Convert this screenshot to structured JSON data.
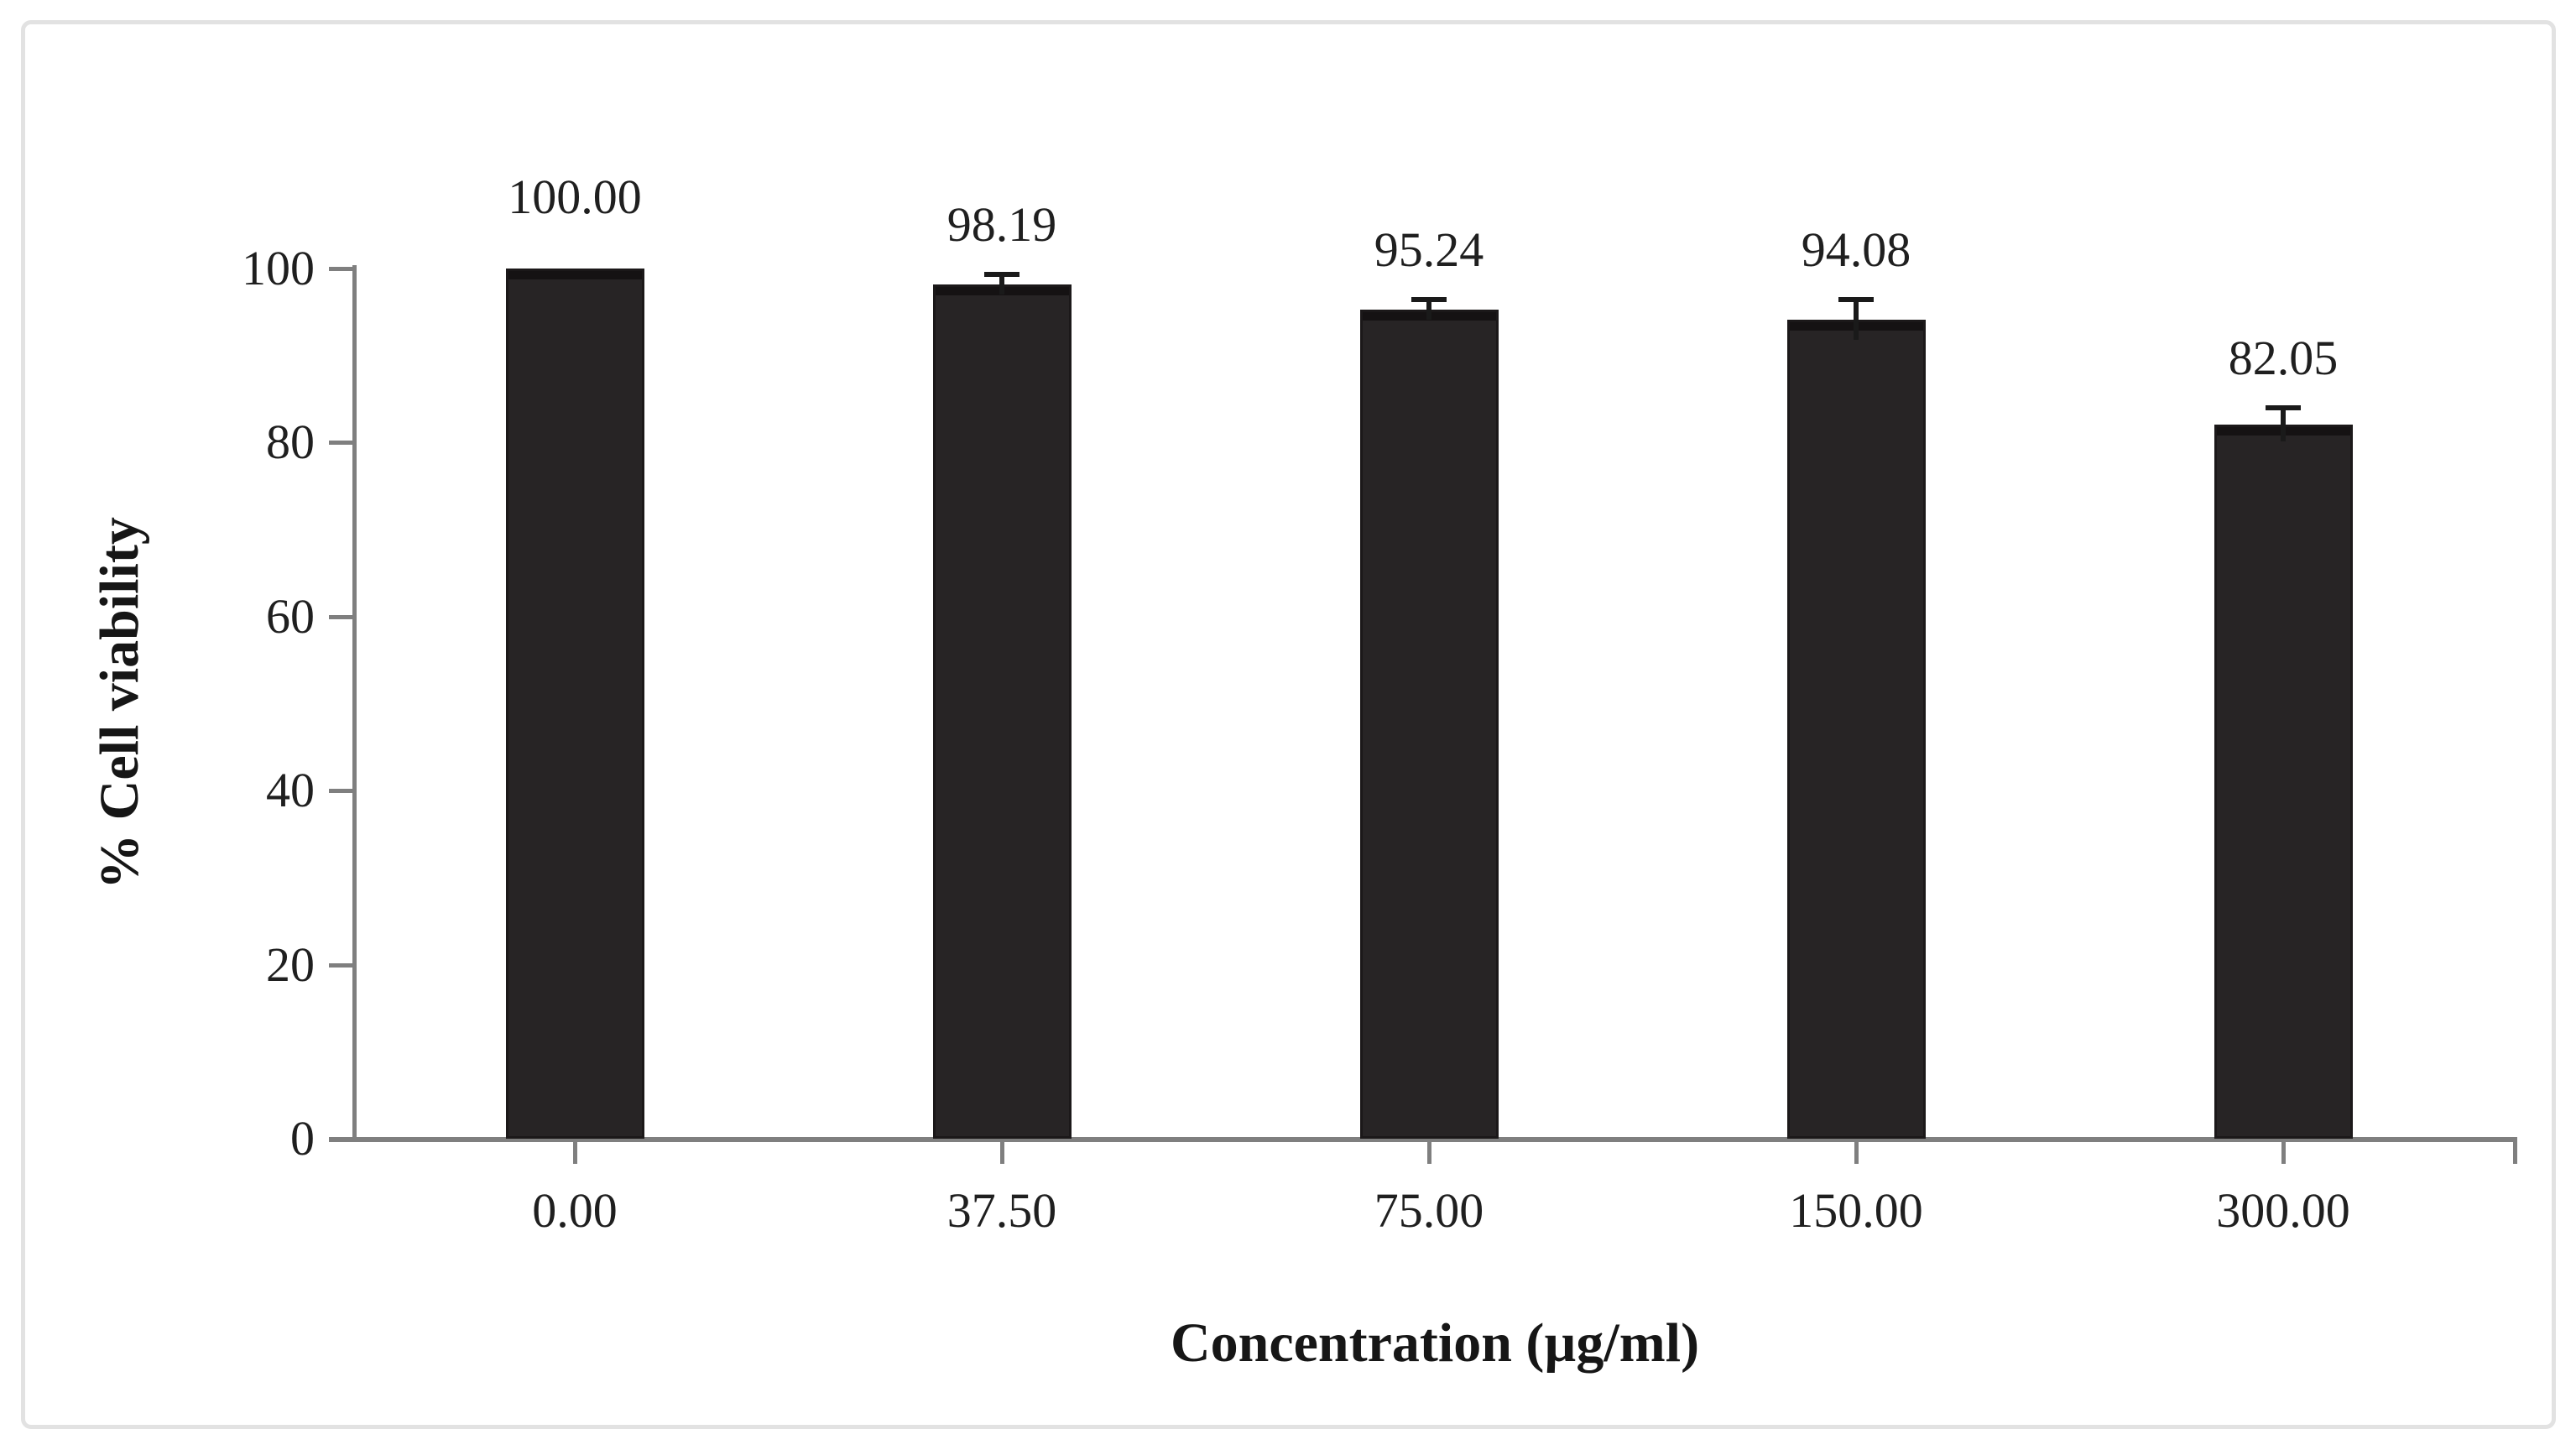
{
  "chart_data": {
    "type": "bar",
    "title": "",
    "categories": [
      "0.00",
      "37.50",
      "75.00",
      "150.00",
      "300.00"
    ],
    "values": [
      100.0,
      98.19,
      95.24,
      94.08,
      82.05
    ],
    "value_labels": [
      "100.00",
      "98.19",
      "95.24",
      "94.08",
      "82.05"
    ],
    "error_bars_pct": [
      0,
      1.2,
      1.2,
      2.3,
      1.9
    ],
    "xlabel": "Concentration (µg/ml)",
    "ylabel": "% Cell viability",
    "ylim": [
      0,
      100
    ],
    "yticks": [
      0,
      20,
      40,
      60,
      80,
      100
    ],
    "grid": false,
    "legend": false,
    "colors": {
      "bar": "#272425",
      "bar_border": "#1b1819",
      "axis": "#7f7f7f",
      "text": "#1f1f1f",
      "frame_border": "#e2e2e2",
      "background": "#ffffff"
    }
  }
}
